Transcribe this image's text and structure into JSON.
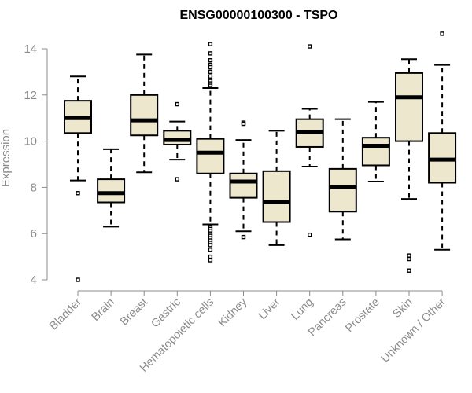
{
  "chart_data": {
    "type": "boxplot",
    "title": "ENSG00000100300 - TSPO",
    "ylabel": "Expression",
    "xlabel": "",
    "ylim": [
      4,
      14.5
    ],
    "yticks": [
      4,
      6,
      8,
      10,
      12,
      14
    ],
    "grid": false,
    "box_fill": "#ede7cd",
    "categories": [
      "Bladder",
      "Brain",
      "Breast",
      "Gastric",
      "Hematopoietic cells",
      "Kidney",
      "Liver",
      "Lung",
      "Pancreas",
      "Prostate",
      "Skin",
      "Unknown / Other"
    ],
    "boxes": [
      {
        "name": "Bladder",
        "whisker_low": 8.3,
        "q1": 10.35,
        "median": 11.0,
        "q3": 11.75,
        "whisker_high": 12.8,
        "outliers": [
          7.75,
          4.0
        ]
      },
      {
        "name": "Brain",
        "whisker_low": 6.3,
        "q1": 7.35,
        "median": 7.75,
        "q3": 8.35,
        "whisker_high": 9.65,
        "outliers": []
      },
      {
        "name": "Breast",
        "whisker_low": 8.65,
        "q1": 10.25,
        "median": 10.9,
        "q3": 12.0,
        "whisker_high": 13.75,
        "outliers": []
      },
      {
        "name": "Gastric",
        "whisker_low": 9.2,
        "q1": 9.85,
        "median": 10.05,
        "q3": 10.45,
        "whisker_high": 10.85,
        "outliers": [
          11.6,
          8.35
        ]
      },
      {
        "name": "Hematopoietic cells",
        "whisker_low": 6.4,
        "q1": 8.6,
        "median": 9.5,
        "q3": 10.1,
        "whisker_high": 12.3,
        "outliers": [
          14.2,
          13.8,
          13.5,
          13.3,
          13.2,
          13.0,
          12.8,
          12.6,
          12.5,
          12.4,
          6.3,
          6.2,
          6.1,
          6.0,
          5.9,
          5.8,
          5.7,
          5.6,
          5.5,
          5.3,
          5.0,
          4.85
        ]
      },
      {
        "name": "Kidney",
        "whisker_low": 6.1,
        "q1": 7.55,
        "median": 8.25,
        "q3": 8.6,
        "whisker_high": 10.05,
        "outliers": [
          10.8,
          10.75,
          5.85
        ]
      },
      {
        "name": "Liver",
        "whisker_low": 5.5,
        "q1": 6.5,
        "median": 7.35,
        "q3": 8.7,
        "whisker_high": 10.45,
        "outliers": []
      },
      {
        "name": "Lung",
        "whisker_low": 8.9,
        "q1": 9.75,
        "median": 10.4,
        "q3": 10.95,
        "whisker_high": 11.4,
        "outliers": [
          14.1,
          5.95
        ]
      },
      {
        "name": "Pancreas",
        "whisker_low": 5.75,
        "q1": 6.95,
        "median": 8.0,
        "q3": 8.8,
        "whisker_high": 10.95,
        "outliers": []
      },
      {
        "name": "Prostate",
        "whisker_low": 8.25,
        "q1": 8.95,
        "median": 9.8,
        "q3": 10.15,
        "whisker_high": 11.7,
        "outliers": []
      },
      {
        "name": "Skin",
        "whisker_low": 7.5,
        "q1": 10.0,
        "median": 11.9,
        "q3": 12.95,
        "whisker_high": 13.55,
        "outliers": [
          5.05,
          4.9,
          4.4
        ]
      },
      {
        "name": "Unknown / Other",
        "whisker_low": 5.3,
        "q1": 8.2,
        "median": 9.2,
        "q3": 10.35,
        "whisker_high": 13.3,
        "outliers": [
          14.65
        ]
      }
    ]
  }
}
